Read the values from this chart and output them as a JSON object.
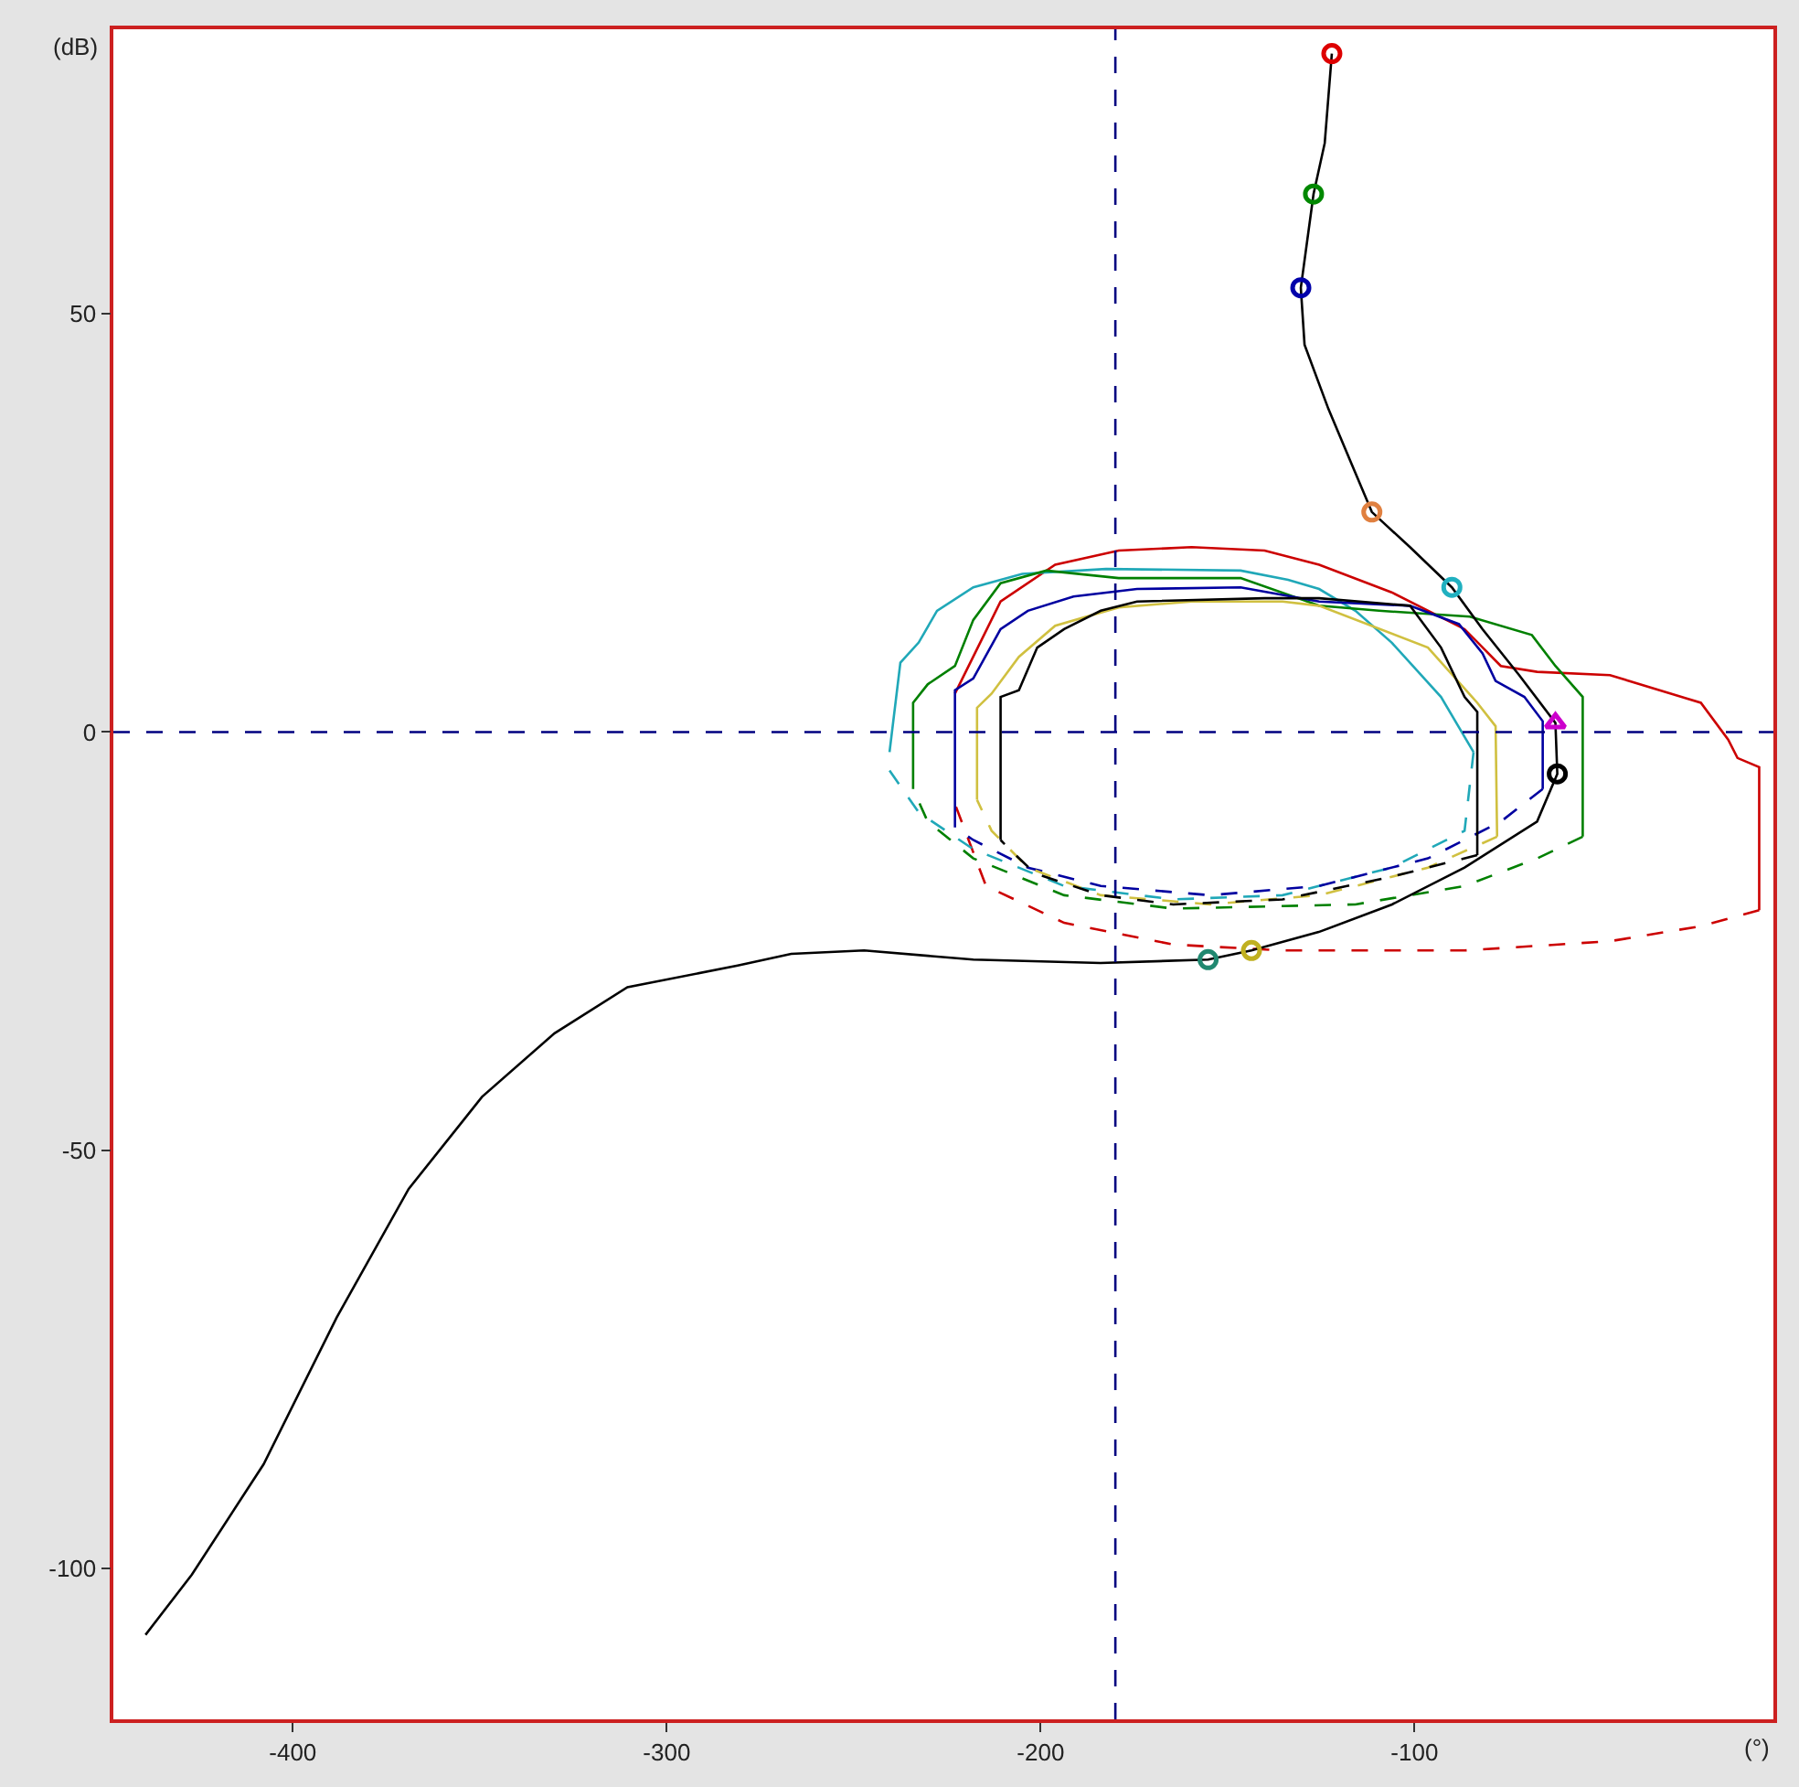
{
  "chart_data": {
    "type": "line",
    "xlabel": "(°)",
    "ylabel": "(dB)",
    "xlim": [
      -448,
      -4
    ],
    "ylim": [
      -118,
      84
    ],
    "xticks": [
      -400,
      -300,
      -200,
      -100
    ],
    "yticks": [
      -100,
      -50,
      0,
      50
    ],
    "ref_lines": [
      {
        "axis": "x",
        "value": -180,
        "color": "#000080",
        "line_style": "dashed"
      },
      {
        "axis": "y",
        "value": 0,
        "color": "#000080",
        "line_style": "dashed"
      }
    ],
    "series": [
      {
        "color": "#cc0000",
        "line_style": "solid",
        "x": [
          -222.9,
          -210.7,
          -196.1,
          -179.1,
          -159.6,
          -140.1,
          -125.5,
          -106.1,
          -86.6,
          -76.9,
          -67.2,
          -47.7,
          -23.4,
          -16.1,
          -13.6,
          -7.8,
          -7.8
        ],
        "values": [
          4.6,
          15.6,
          20,
          21.7,
          22.1,
          21.7,
          20,
          16.7,
          12.3,
          7.9,
          7.2,
          6.8,
          3.5,
          -0.9,
          -3.1,
          -4.2,
          -21.3
        ]
      },
      {
        "color": "#cc0000",
        "line_style": "dashed",
        "x": [
          -7.8,
          -23.4,
          -47.7,
          -86.6,
          -135.3,
          -164.5,
          -193.7,
          -214.6,
          -222.9
        ],
        "values": [
          -21.3,
          -23.2,
          -25,
          -26.1,
          -26.1,
          -25.4,
          -22.8,
          -18.4,
          -8.6
        ]
      },
      {
        "color": "#20a8b8",
        "line_style": "solid",
        "x": [
          -240.4,
          -237.5,
          -232.6,
          -227.7,
          -218,
          -204.9,
          -182.5,
          -146.5,
          -133.8,
          -125.5,
          -115.8,
          -106.1,
          -92.9,
          -84.2
        ],
        "values": [
          -2.4,
          8.3,
          10.7,
          14.5,
          17.3,
          18.9,
          19.5,
          19.3,
          18.2,
          17.1,
          14.5,
          10.7,
          4.2,
          -2.4
        ]
      },
      {
        "color": "#20a8b8",
        "line_style": "dashed",
        "x": [
          -84.2,
          -86.6,
          -106.1,
          -135.3,
          -164.5,
          -193.7,
          -218,
          -232.6,
          -240.4
        ],
        "values": [
          -2.4,
          -11.8,
          -16.2,
          -19.5,
          -20,
          -18.4,
          -14,
          -9.6,
          -4.6
        ]
      },
      {
        "color": "#008000",
        "line_style": "solid",
        "x": [
          -234.1,
          -234.1,
          -230.2,
          -222.9,
          -218,
          -210.7,
          -198.5,
          -179.1,
          -146.5,
          -125.5,
          -109.5,
          -85.2,
          -68.6,
          -62.3,
          -55,
          -55
        ],
        "values": [
          -6.8,
          3.5,
          5.7,
          7.9,
          13.4,
          17.8,
          19.3,
          18.4,
          18.4,
          15.1,
          14.5,
          13.8,
          11.6,
          7.9,
          4.2,
          -12.5
        ]
      },
      {
        "color": "#008000",
        "line_style": "dashed",
        "x": [
          -55,
          -67.2,
          -86.6,
          -115.8,
          -164.5,
          -193.7,
          -218,
          -230.2,
          -234.1
        ],
        "values": [
          -12.5,
          -15.1,
          -18.4,
          -20.6,
          -21.1,
          -19.5,
          -15.1,
          -10.7,
          -6.8
        ]
      },
      {
        "color": "#0000a0",
        "line_style": "solid",
        "x": [
          -222.9,
          -222.9,
          -218,
          -210.7,
          -203.4,
          -191.2,
          -174.2,
          -146.5,
          -125.5,
          -101.2,
          -88.1,
          -81.8,
          -78.3,
          -70.6,
          -65.7,
          -65.7
        ],
        "values": [
          -11.4,
          5,
          6.4,
          12.3,
          14.5,
          16.2,
          17.1,
          17.3,
          15.6,
          15.1,
          12.9,
          9.4,
          6.1,
          4.2,
          1.3,
          -6.8
        ]
      },
      {
        "color": "#0000a0",
        "line_style": "dashed",
        "x": [
          -65.7,
          -76.9,
          -96.4,
          -125.5,
          -154.7,
          -183.9,
          -203.4,
          -218,
          -222.9
        ],
        "values": [
          -6.8,
          -10.7,
          -15.1,
          -18.4,
          -19.5,
          -18.4,
          -16.2,
          -12.9,
          -11.4
        ]
      },
      {
        "color": "#d0c040",
        "line_style": "solid",
        "x": [
          -217,
          -217,
          -213.1,
          -205.8,
          -196.1,
          -179.1,
          -159.6,
          -135.3,
          -125.5,
          -96.4,
          -83.2,
          -78.3,
          -77.9
        ],
        "values": [
          -8.1,
          2.9,
          4.6,
          9,
          12.7,
          14.9,
          15.6,
          15.6,
          15.1,
          10.1,
          3.5,
          0.7,
          -12.5
        ]
      },
      {
        "color": "#d0c040",
        "line_style": "dashed",
        "x": [
          -77.9,
          -96.4,
          -125.5,
          -154.7,
          -183.9,
          -203.4,
          -213.1,
          -217
        ],
        "values": [
          -12.5,
          -16.2,
          -19.5,
          -20.6,
          -19.5,
          -16.2,
          -11.8,
          -8.1
        ]
      },
      {
        "color": "#000000",
        "line_style": "solid",
        "x": [
          -210.7,
          -210.7,
          -205.8,
          -200.9,
          -193.7,
          -183.9,
          -174.2,
          -140.1,
          -125.5,
          -101.2,
          -92.9,
          -86.6,
          -83.2,
          -83.2
        ],
        "values": [
          -12.9,
          4.2,
          5,
          10.1,
          12.3,
          14.5,
          15.6,
          16,
          16,
          15.1,
          10.1,
          4.2,
          2.4,
          -14.7
        ]
      },
      {
        "color": "#000000",
        "line_style": "dashed",
        "x": [
          -83.2,
          -106.1,
          -135.3,
          -164.5,
          -183.9,
          -201.5,
          -208.3,
          -210.7
        ],
        "values": [
          -14.7,
          -17.3,
          -20,
          -20.6,
          -19.5,
          -16.9,
          -14,
          -12.9
        ]
      },
      {
        "color": "#000000",
        "line_style": "solid",
        "x": [
          -122.1,
          -124,
          -127,
          -130.4,
          -129.4,
          -123,
          -111.4,
          -101.2,
          -90,
          -81.8,
          -72,
          -62.3,
          -61.8,
          -67.2,
          -86.6,
          -106,
          -125.6,
          -143.6,
          -155.2,
          -184,
          -218,
          -247.2,
          -266.7,
          -281,
          -310.5,
          -330,
          -349.4,
          -369,
          -388.3,
          -407.8,
          -427,
          -439.4
        ],
        "values": [
          81.1,
          70.4,
          64.3,
          53.1,
          46.3,
          38.6,
          26.3,
          22.1,
          17.3,
          12.3,
          6.8,
          1.1,
          -5,
          -10.7,
          -16.2,
          -20.6,
          -23.9,
          -26.1,
          -27.2,
          -27.6,
          -27.2,
          -26.1,
          -26.5,
          -27.9,
          -30.5,
          -36,
          -43.6,
          -54.6,
          -70,
          -87.5,
          -100.7,
          -107.9
        ]
      },
      {
        "type": "scatter",
        "marker": "circle",
        "color": "#dd0000",
        "x": [
          -122.1
        ],
        "values": [
          81.1
        ]
      },
      {
        "type": "scatter",
        "marker": "circle",
        "color": "#008800",
        "x": [
          -127
        ],
        "values": [
          64.3
        ]
      },
      {
        "type": "scatter",
        "marker": "circle",
        "color": "#0000aa",
        "x": [
          -130.4
        ],
        "values": [
          53.1
        ]
      },
      {
        "type": "scatter",
        "marker": "circle",
        "color": "#e08040",
        "x": [
          -111.4
        ],
        "values": [
          26.3
        ]
      },
      {
        "type": "scatter",
        "marker": "circle",
        "color": "#20b0c0",
        "x": [
          -90
        ],
        "values": [
          17.3
        ]
      },
      {
        "type": "scatter",
        "marker": "triangle",
        "color": "#cc00cc",
        "x": [
          -62.3
        ],
        "values": [
          1.1
        ]
      },
      {
        "type": "scatter",
        "marker": "circle",
        "color": "#000000",
        "x": [
          -61.8
        ],
        "values": [
          -5
        ]
      },
      {
        "type": "scatter",
        "marker": "circle",
        "color": "#c0b020",
        "x": [
          -143.6
        ],
        "values": [
          -26.1
        ]
      },
      {
        "type": "scatter",
        "marker": "circle",
        "color": "#208870",
        "x": [
          -155.2
        ],
        "values": [
          -27.2
        ]
      }
    ]
  }
}
